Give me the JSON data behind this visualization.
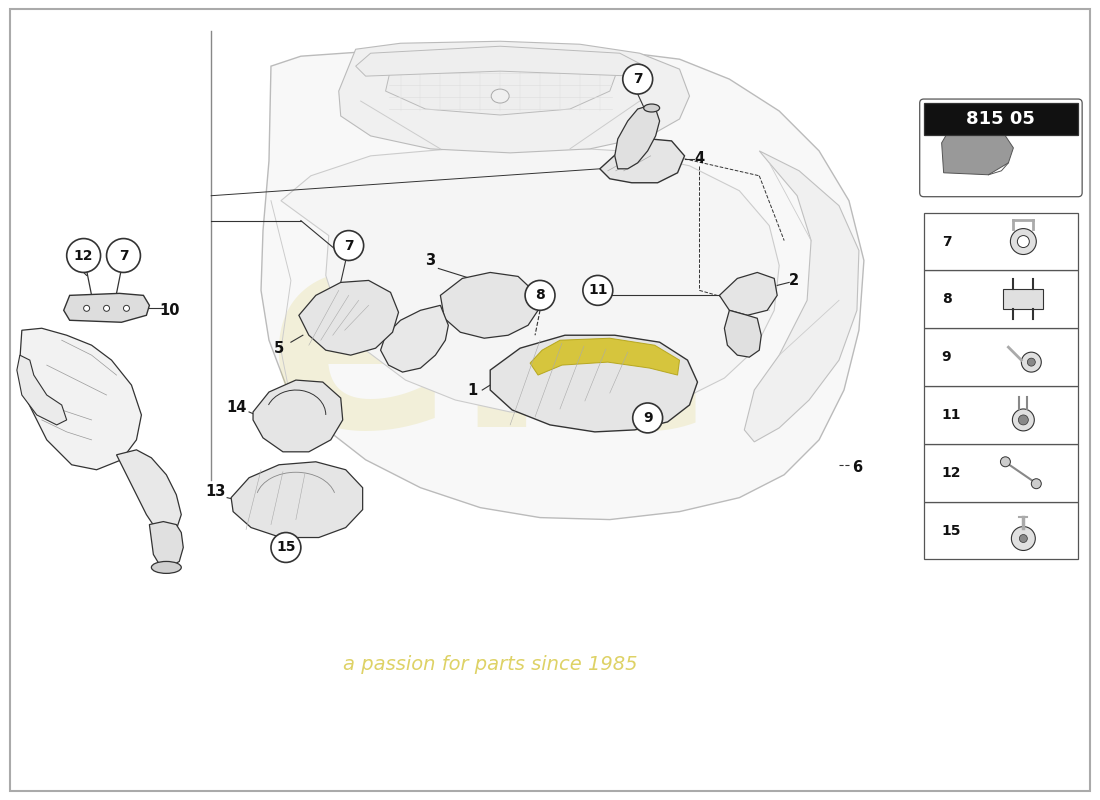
{
  "background_color": "#ffffff",
  "part_number_box": "815 05",
  "watermark_color_elc": "#c8b400",
  "watermark_color_text": "#c8b400",
  "line_color": "#333333",
  "light_line": "#aaaaaa",
  "part_fill": "#e8e8e8",
  "circle_fill": "#ffffff",
  "circle_border": "#333333",
  "legend_items": [
    15,
    12,
    11,
    9,
    8,
    7
  ],
  "border_color": "#888888"
}
